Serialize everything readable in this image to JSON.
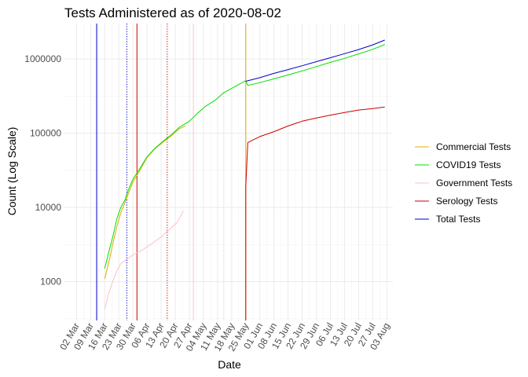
{
  "chart_data": {
    "type": "line",
    "title": "Tests Administered as of 2020-08-02",
    "xlabel": "Date",
    "ylabel": "Count (Log Scale)",
    "y_scale": "log10",
    "ylim": [
      300,
      3000000
    ],
    "xlim": [
      "2020-02-25",
      "2020-08-06"
    ],
    "grid": true,
    "legend_position": "right",
    "x_ticks": [
      "2020-03-02",
      "2020-03-09",
      "2020-03-16",
      "2020-03-23",
      "2020-03-30",
      "2020-04-06",
      "2020-04-13",
      "2020-04-20",
      "2020-04-27",
      "2020-05-04",
      "2020-05-11",
      "2020-05-18",
      "2020-05-25",
      "2020-06-01",
      "2020-06-08",
      "2020-06-15",
      "2020-06-22",
      "2020-06-29",
      "2020-07-06",
      "2020-07-13",
      "2020-07-20",
      "2020-07-27",
      "2020-08-03"
    ],
    "x_tick_labels": [
      "02 Mar",
      "09 Mar",
      "16 Mar",
      "23 Mar",
      "30 Mar",
      "06 Apr",
      "13 Apr",
      "20 Apr",
      "27 Apr",
      "04 May",
      "11 May",
      "18 May",
      "25 May",
      "01 Jun",
      "08 Jun",
      "15 Jun",
      "22 Jun",
      "29 Jun",
      "06 Jul",
      "13 Jul",
      "20 Jul",
      "27 Jul",
      "03 Aug"
    ],
    "y_ticks": [
      1000,
      10000,
      100000,
      1000000
    ],
    "y_tick_labels": [
      "1000",
      "10000",
      "100000",
      "1000000"
    ],
    "series": [
      {
        "name": "Commercial Tests",
        "color": "#e6a800",
        "points": [
          [
            "2020-03-16",
            1100
          ],
          [
            "2020-03-18",
            1800
          ],
          [
            "2020-03-20",
            3200
          ],
          [
            "2020-03-22",
            5500
          ],
          [
            "2020-03-24",
            8500
          ],
          [
            "2020-03-26",
            11500
          ],
          [
            "2020-03-28",
            16000
          ],
          [
            "2020-03-30",
            22000
          ],
          [
            "2020-04-02",
            30000
          ],
          [
            "2020-04-06",
            47000
          ],
          [
            "2020-04-10",
            62000
          ],
          [
            "2020-04-14",
            76000
          ],
          [
            "2020-04-18",
            92000
          ],
          [
            "2020-04-22",
            115000
          ],
          [
            "2020-04-25",
            125000
          ]
        ]
      },
      {
        "name": "COVID19 Tests",
        "color": "#00e000",
        "points": [
          [
            "2020-03-16",
            1500
          ],
          [
            "2020-03-18",
            2500
          ],
          [
            "2020-03-20",
            4000
          ],
          [
            "2020-03-22",
            7000
          ],
          [
            "2020-03-24",
            10000
          ],
          [
            "2020-03-26",
            12500
          ],
          [
            "2020-03-28",
            18000
          ],
          [
            "2020-03-30",
            24000
          ],
          [
            "2020-04-02",
            32000
          ],
          [
            "2020-04-06",
            48000
          ],
          [
            "2020-04-10",
            63000
          ],
          [
            "2020-04-14",
            78000
          ],
          [
            "2020-04-18",
            95000
          ],
          [
            "2020-04-22",
            120000
          ],
          [
            "2020-04-27",
            145000
          ],
          [
            "2020-05-01",
            185000
          ],
          [
            "2020-05-05",
            230000
          ],
          [
            "2020-05-10",
            280000
          ],
          [
            "2020-05-14",
            350000
          ],
          [
            "2020-05-20",
            430000
          ],
          [
            "2020-05-25",
            510000
          ],
          [
            "2020-05-26",
            440000
          ],
          [
            "2020-06-01",
            480000
          ],
          [
            "2020-06-08",
            540000
          ],
          [
            "2020-06-15",
            610000
          ],
          [
            "2020-06-22",
            690000
          ],
          [
            "2020-06-29",
            790000
          ],
          [
            "2020-07-06",
            900000
          ],
          [
            "2020-07-13",
            1020000
          ],
          [
            "2020-07-20",
            1170000
          ],
          [
            "2020-07-27",
            1350000
          ],
          [
            "2020-08-02",
            1570000
          ]
        ]
      },
      {
        "name": "Government Tests",
        "color": "#ffc0cb",
        "points": [
          [
            "2020-03-16",
            430
          ],
          [
            "2020-03-18",
            700
          ],
          [
            "2020-03-20",
            1000
          ],
          [
            "2020-03-22",
            1400
          ],
          [
            "2020-03-24",
            1750
          ],
          [
            "2020-03-27",
            2000
          ],
          [
            "2020-03-30",
            2300
          ],
          [
            "2020-04-03",
            2600
          ],
          [
            "2020-04-08",
            3200
          ],
          [
            "2020-04-13",
            4000
          ],
          [
            "2020-04-17",
            5000
          ],
          [
            "2020-04-21",
            6300
          ],
          [
            "2020-04-24",
            9000
          ]
        ]
      },
      {
        "name": "Serology Tests",
        "color": "#cc0000",
        "points": [
          [
            "2020-05-25",
            300
          ],
          [
            "2020-05-25",
            19000
          ],
          [
            "2020-05-26",
            75000
          ],
          [
            "2020-06-01",
            90000
          ],
          [
            "2020-06-08",
            105000
          ],
          [
            "2020-06-15",
            125000
          ],
          [
            "2020-06-22",
            145000
          ],
          [
            "2020-06-29",
            160000
          ],
          [
            "2020-07-06",
            175000
          ],
          [
            "2020-07-13",
            190000
          ],
          [
            "2020-07-20",
            205000
          ],
          [
            "2020-07-27",
            215000
          ],
          [
            "2020-08-02",
            225000
          ]
        ]
      },
      {
        "name": "Total Tests",
        "color": "#0000cc",
        "points": [
          [
            "2020-05-25",
            500000
          ],
          [
            "2020-06-01",
            560000
          ],
          [
            "2020-06-08",
            640000
          ],
          [
            "2020-06-15",
            720000
          ],
          [
            "2020-06-22",
            810000
          ],
          [
            "2020-06-29",
            920000
          ],
          [
            "2020-07-06",
            1040000
          ],
          [
            "2020-07-13",
            1180000
          ],
          [
            "2020-07-20",
            1340000
          ],
          [
            "2020-07-27",
            1550000
          ],
          [
            "2020-08-02",
            1800000
          ]
        ]
      }
    ],
    "vlines": [
      {
        "date": "2020-03-12",
        "color": "#0000cc",
        "style": "solid"
      },
      {
        "date": "2020-03-27",
        "color": "#0000cc",
        "style": "dotted"
      },
      {
        "date": "2020-04-01",
        "color": "#cc0000",
        "style": "solid"
      },
      {
        "date": "2020-04-16",
        "color": "#cc0000",
        "style": "dotted"
      },
      {
        "date": "2020-04-29",
        "color": "#ffc0cb",
        "style": "solid"
      },
      {
        "date": "2020-05-14",
        "color": "#ffc0cb",
        "style": "dotted"
      },
      {
        "date": "2020-05-25",
        "color": "#e6a800",
        "style": "solid"
      }
    ]
  }
}
